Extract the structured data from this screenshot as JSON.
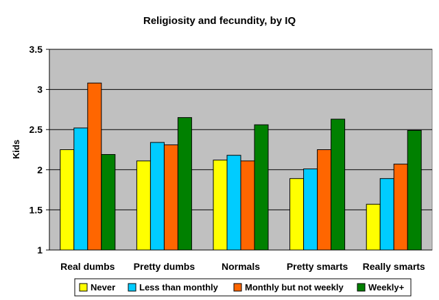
{
  "chart_data": {
    "type": "bar",
    "title": "Religiosity and fecundity, by IQ",
    "xlabel": "",
    "ylabel": "Kids",
    "ylim": [
      1,
      3.5
    ],
    "yticks": [
      "1",
      "1.5",
      "2",
      "2.5",
      "3",
      "3.5"
    ],
    "grid": true,
    "legend_position": "bottom",
    "plot_background": "#c0c0c0",
    "categories": [
      "Real dumbs",
      "Pretty dumbs",
      "Normals",
      "Pretty smarts",
      "Really smarts"
    ],
    "series": [
      {
        "name": "Never",
        "color": "#ffff00",
        "values": [
          2.25,
          2.11,
          2.12,
          1.89,
          1.57
        ]
      },
      {
        "name": "Less than monthly",
        "color": "#00ccff",
        "values": [
          2.52,
          2.34,
          2.18,
          2.01,
          1.89
        ]
      },
      {
        "name": "Monthly but not weekly",
        "color": "#ff6600",
        "values": [
          3.08,
          2.31,
          2.11,
          2.25,
          2.07
        ]
      },
      {
        "name": "Weekly+",
        "color": "#008000",
        "values": [
          2.19,
          2.65,
          2.56,
          2.63,
          2.49
        ]
      }
    ]
  }
}
